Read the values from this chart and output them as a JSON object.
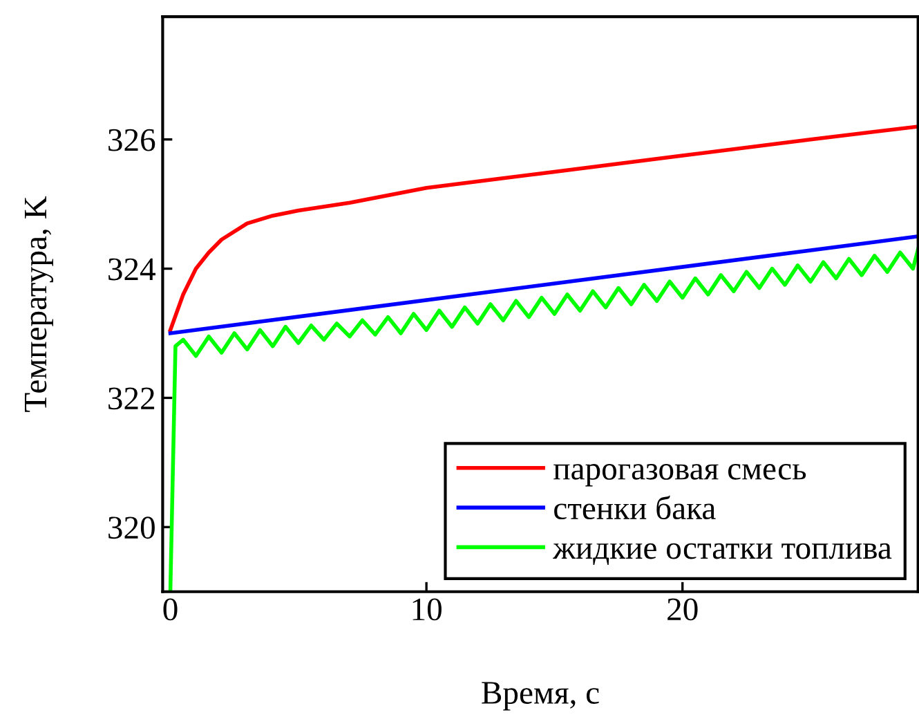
{
  "chart_data": {
    "type": "line",
    "xlabel": "Время, с",
    "ylabel": "Температура, K",
    "xlim": [
      -0.3,
      29.2
    ],
    "ylim": [
      319.0,
      327.9
    ],
    "xticks": [
      0,
      10,
      20
    ],
    "yticks": [
      320,
      322,
      324,
      326
    ],
    "grid": false,
    "legend": "bottom right",
    "marker": "none",
    "line_style": "solid",
    "series": [
      {
        "name": "парогазовая смесь",
        "color": "#ff0000",
        "x": [
          0,
          0.5,
          1,
          1.5,
          2,
          3,
          4,
          5,
          7,
          10,
          15,
          20,
          25,
          29.2
        ],
        "values": [
          323.05,
          323.6,
          324.0,
          324.25,
          324.45,
          324.7,
          324.82,
          324.9,
          325.02,
          325.25,
          325.5,
          325.75,
          326.0,
          326.2
        ]
      },
      {
        "name": "стенки бака",
        "color": "#0000ff",
        "x": [
          0,
          29.2
        ],
        "values": [
          323.0,
          324.5
        ]
      },
      {
        "name": "жидкие остатки топлива",
        "color": "#00ff00",
        "x": [
          0,
          0.2,
          0.5,
          1,
          1.5,
          2,
          2.5,
          3,
          3.5,
          4,
          4.5,
          5,
          5.5,
          6,
          6.5,
          7,
          7.5,
          8,
          8.5,
          9,
          9.5,
          10,
          10.5,
          11,
          11.5,
          12,
          12.5,
          13,
          13.5,
          14,
          14.5,
          15,
          15.5,
          16,
          16.5,
          17,
          17.5,
          18,
          18.5,
          19,
          19.5,
          20,
          20.5,
          21,
          21.5,
          22,
          22.5,
          23,
          23.5,
          24,
          24.5,
          25,
          25.5,
          26,
          26.5,
          27,
          27.5,
          28,
          28.5,
          29,
          29.2
        ],
        "values": [
          319.0,
          322.8,
          322.9,
          322.65,
          322.95,
          322.7,
          323.0,
          322.75,
          323.05,
          322.8,
          323.1,
          322.85,
          323.12,
          322.9,
          323.15,
          322.95,
          323.2,
          322.98,
          323.25,
          323.0,
          323.3,
          323.05,
          323.35,
          323.1,
          323.4,
          323.15,
          323.45,
          323.2,
          323.5,
          323.25,
          323.55,
          323.3,
          323.6,
          323.35,
          323.65,
          323.4,
          323.7,
          323.45,
          323.75,
          323.5,
          323.8,
          323.55,
          323.85,
          323.6,
          323.9,
          323.65,
          323.95,
          323.7,
          324.0,
          323.75,
          324.05,
          323.8,
          324.1,
          323.85,
          324.15,
          323.9,
          324.2,
          323.95,
          324.25,
          324.0,
          324.3
        ]
      }
    ]
  }
}
